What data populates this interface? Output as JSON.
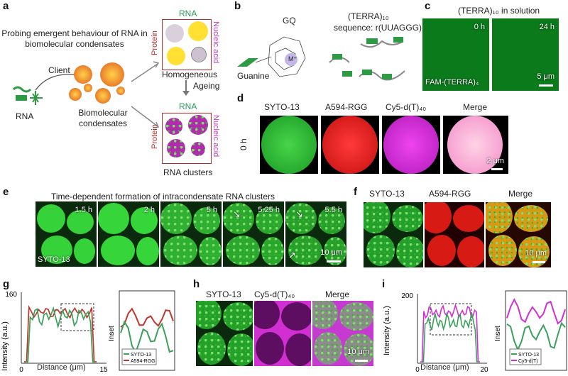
{
  "panel_a": {
    "letter": "a",
    "title": "Probing emergent behaviour of RNA in biomolecular condensates",
    "client": "Client",
    "rna": "RNA",
    "condensates": "Biomolecular condensates",
    "box_top_label": "RNA",
    "box_left_label": "Protein",
    "box_right_label": "Nucleic acid",
    "homogeneous": "Homogeneous",
    "ageing": "Ageing",
    "box2_top_label": "RNA",
    "box2_left_label": "Protein",
    "box2_right_label": "Nucleic acid",
    "rna_clusters": "RNA clusters"
  },
  "panel_b": {
    "letter": "b",
    "gq": "GQ",
    "guanine": "Guanine",
    "ion": "M⁺",
    "terra": "(TERRA)₁₀",
    "sequence": "sequence: r(UUAGGG)₁₀"
  },
  "panel_c": {
    "letter": "c",
    "title": "(TERRA)₁₀ in solution",
    "t0": "0 h",
    "t24": "24 h",
    "probe": "FAM-(TERRA)₄",
    "scale": "5 μm"
  },
  "panel_d": {
    "letter": "d",
    "row_label": "0 h",
    "channels": [
      "SYTO-13",
      "A594-RGG",
      "Cy5-d(T)₄₀",
      "Merge"
    ],
    "scale": "2 μm"
  },
  "panel_e": {
    "letter": "e",
    "title": "Time-dependent formation of intracondensate RNA clusters",
    "times": [
      "1.5 h",
      "2 h",
      "5 h",
      "5.25 h",
      "5.5 h"
    ],
    "dye": "SYTO-13",
    "scale": "10 μm"
  },
  "panel_f": {
    "letter": "f",
    "channels": [
      "SYTO-13",
      "A594-RGG",
      "Merge"
    ],
    "scale": "10 μm"
  },
  "panel_g": {
    "letter": "g",
    "ylabel": "Intensity (a.u.)",
    "xlabel": "Distance (μm)",
    "ytick_top": "160",
    "xticks": [
      "0",
      "15"
    ],
    "inset_label": "Inset",
    "legend": [
      "SYTO-13",
      "A594-RGG"
    ],
    "colors": {
      "green": "#3aa05a",
      "red": "#c0362c"
    }
  },
  "panel_h": {
    "letter": "h",
    "channels": [
      "SYTO-13",
      "Cy5-d(T)₄₀",
      "Merge"
    ],
    "scale": "10 μm"
  },
  "panel_i": {
    "letter": "i",
    "ylabel": "Intensity (a.u.)",
    "xlabel": "Distance (μm)",
    "ytick_top": "200",
    "xticks": [
      "0",
      "20"
    ],
    "inset_label": "Inset",
    "legend": [
      "SYTO-13",
      "Cy5-d(T)"
    ],
    "colors": {
      "green": "#3aa05a",
      "magenta": "#d22fd2"
    }
  }
}
